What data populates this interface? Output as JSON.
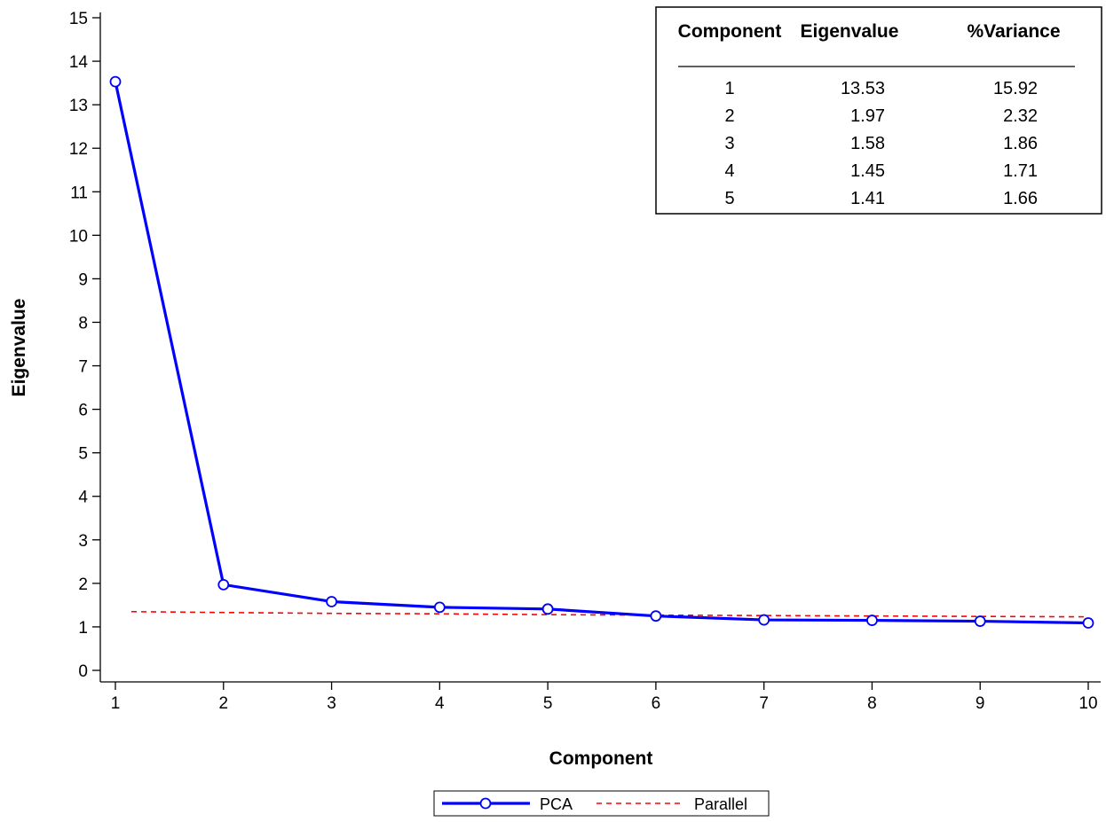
{
  "chart_data": {
    "type": "line",
    "xlabel": "Component",
    "ylabel": "Eigenvalue",
    "x": [
      1,
      2,
      3,
      4,
      5,
      6,
      7,
      8,
      9,
      10
    ],
    "xlim": [
      1,
      10
    ],
    "ylim": [
      0,
      15
    ],
    "yticks": [
      0,
      1,
      2,
      3,
      4,
      5,
      6,
      7,
      8,
      9,
      10,
      11,
      12,
      13,
      14,
      15
    ],
    "grid": false,
    "legend_position": "bottom-center",
    "series": [
      {
        "name": "PCA",
        "style": "solid-line-with-circle-markers",
        "color": "#0000ff",
        "values": [
          13.53,
          1.97,
          1.58,
          1.45,
          1.41,
          1.25,
          1.16,
          1.15,
          1.13,
          1.09
        ]
      },
      {
        "name": "Parallel",
        "style": "dashed-line",
        "color": "#ff0000",
        "values": [
          1.35,
          1.33,
          1.31,
          1.3,
          1.28,
          1.27,
          1.26,
          1.25,
          1.24,
          1.23
        ]
      }
    ],
    "inset_table": {
      "columns": [
        "Component",
        "Eigenvalue",
        "%Variance"
      ],
      "rows": [
        [
          "1",
          "13.53",
          "15.92"
        ],
        [
          "2",
          "1.97",
          "2.32"
        ],
        [
          "3",
          "1.58",
          "1.86"
        ],
        [
          "4",
          "1.45",
          "1.71"
        ],
        [
          "5",
          "1.41",
          "1.66"
        ]
      ]
    }
  }
}
